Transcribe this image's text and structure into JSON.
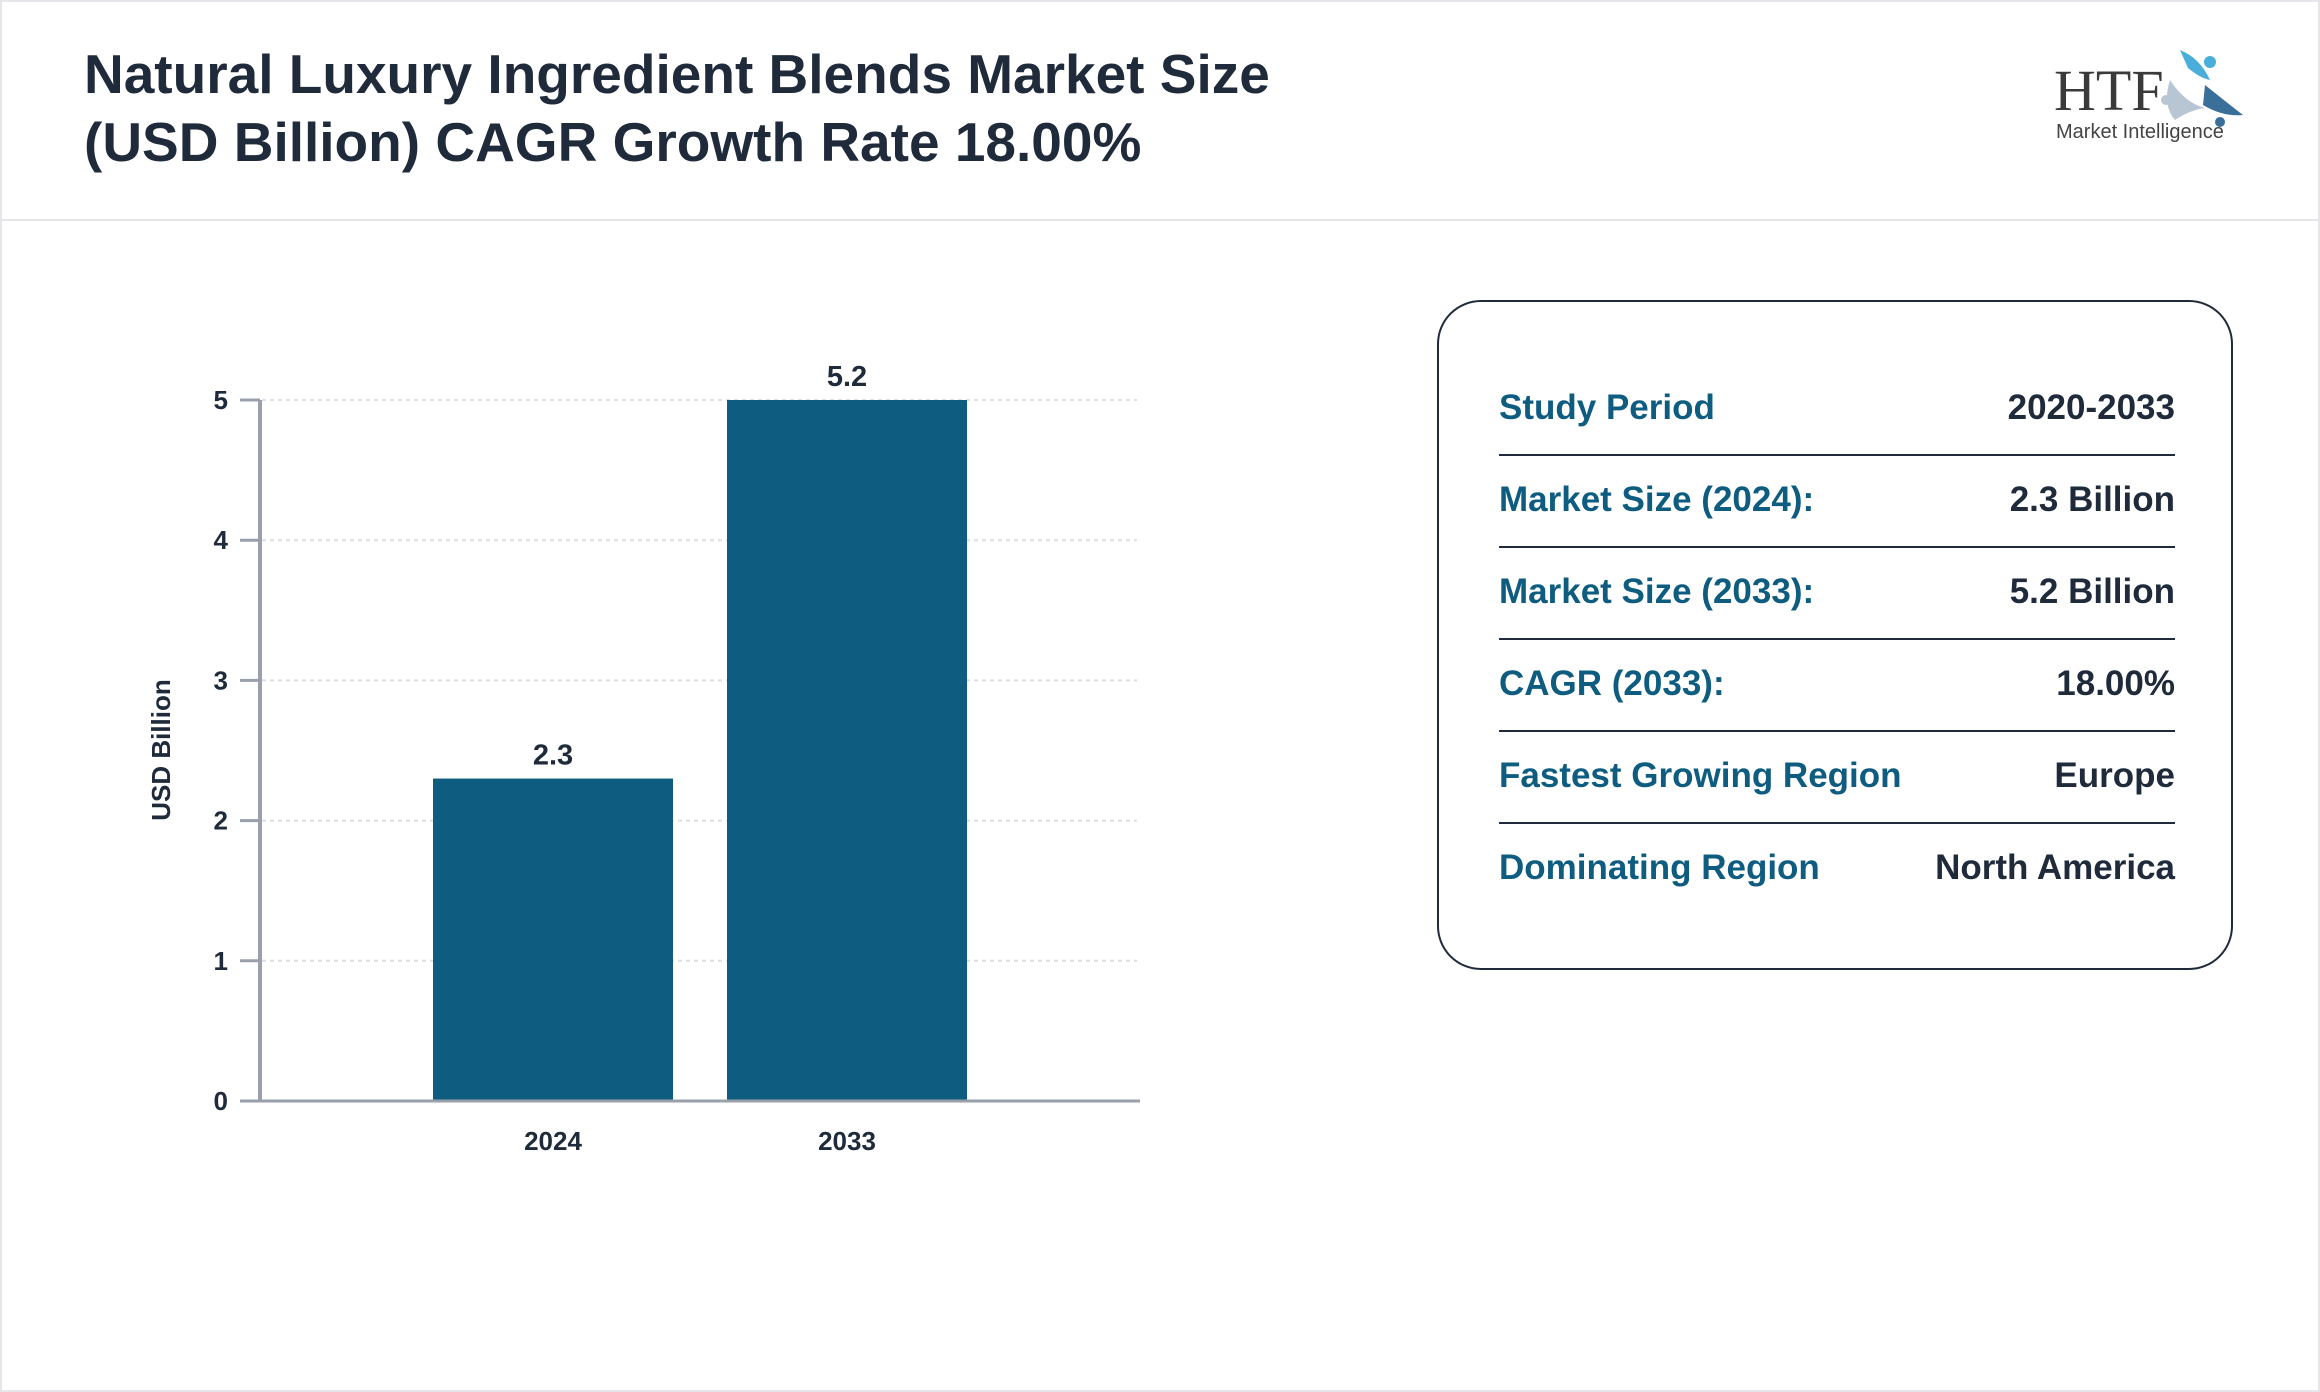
{
  "header": {
    "title_line1": "Natural Luxury Ingredient Blends Market Size",
    "title_line2": "(USD Billion) CAGR Growth Rate 18.00%",
    "logo_text": "HTF",
    "logo_subtext": "Market Intelligence"
  },
  "chart_data": {
    "type": "bar",
    "categories": [
      "2024",
      "2033"
    ],
    "values": [
      2.3,
      5.2
    ],
    "data_labels": [
      "2.3",
      "5.2"
    ],
    "ylabel": "USD Billion",
    "xlabel": "",
    "ylim": [
      0,
      5
    ],
    "yticks": [
      "0",
      "1",
      "2",
      "3",
      "4",
      "5"
    ],
    "grid": true,
    "bar_color": "#0e5c80"
  },
  "summary": {
    "rows": [
      {
        "label": "Study Period",
        "value": "2020-2033"
      },
      {
        "label": "Market Size (2024):",
        "value": "2.3 Billion"
      },
      {
        "label": "Market Size (2033):",
        "value": "5.2 Billion"
      },
      {
        "label": "CAGR (2033):",
        "value": "18.00%"
      },
      {
        "label": "Fastest Growing Region",
        "value": "Europe"
      },
      {
        "label": "Dominating Region",
        "value": "North America"
      }
    ]
  }
}
